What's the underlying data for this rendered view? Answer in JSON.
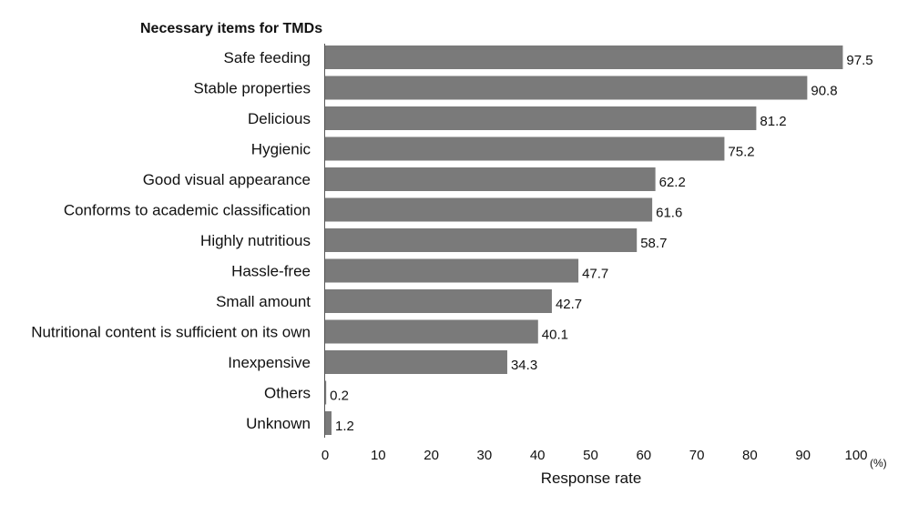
{
  "chart_data": {
    "type": "bar",
    "orientation": "horizontal",
    "title": "Necessary items for TMDs",
    "categories": [
      "Safe feeding",
      "Stable properties",
      "Delicious",
      "Hygienic",
      "Good visual appearance",
      "Conforms to academic classification",
      "Highly nutritious",
      "Hassle-free",
      "Small amount",
      "Nutritional content is sufficient on its own",
      "Inexpensive",
      "Others",
      "Unknown"
    ],
    "values": [
      97.5,
      90.8,
      81.2,
      75.2,
      62.2,
      61.6,
      58.7,
      47.7,
      42.7,
      40.1,
      34.3,
      0.2,
      1.2
    ],
    "value_labels": [
      "97.5",
      "90.8",
      "81.2",
      "75.2",
      "62.2",
      "61.6",
      "58.7",
      "47.7",
      "42.7",
      "40.1",
      "34.3",
      "0.2",
      "1.2"
    ],
    "xlabel": "Response rate",
    "x_unit": "(%)",
    "xlim": [
      0,
      100
    ],
    "x_ticks": [
      "0",
      "10",
      "20",
      "30",
      "40",
      "50",
      "60",
      "70",
      "80",
      "90",
      "100"
    ],
    "grid": false,
    "bar_color": "#7a7a7a"
  }
}
